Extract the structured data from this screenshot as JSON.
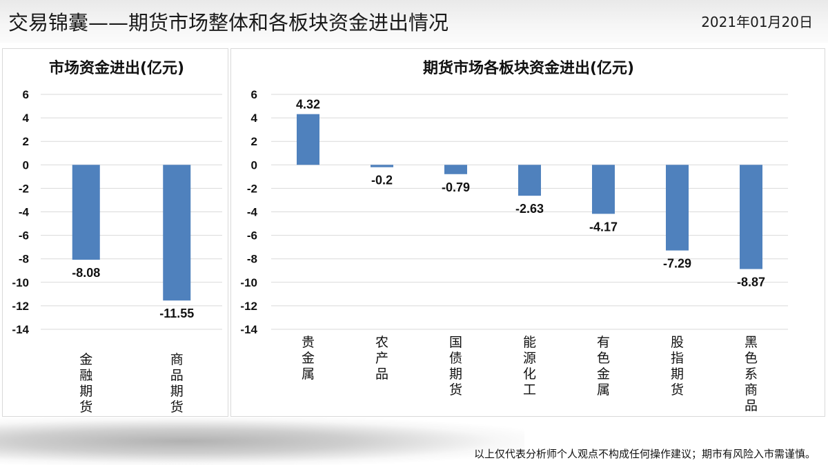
{
  "header": {
    "title": "交易锦囊——期货市场整体和各板块资金进出情况",
    "date": "2021年01月20日"
  },
  "footer": {
    "disclaimer": "以上仅代表分析师个人观点不构成任何操作建议；期市有风险入市需谨慎。"
  },
  "colors": {
    "bar": "#4f81bd",
    "grid": "#d9d9d9"
  },
  "chart_data": [
    {
      "type": "bar",
      "title": "市场资金进出(亿元)",
      "categories": [
        "金融期货",
        "商品期货"
      ],
      "values": [
        -8.08,
        -11.55
      ],
      "value_labels": [
        "-8.08",
        "-11.55"
      ],
      "yticks": [
        6,
        4,
        2,
        0,
        -2,
        -4,
        -6,
        -8,
        -10,
        -12,
        -14
      ],
      "ylim": [
        -14,
        6
      ],
      "grid": true,
      "legend": "none"
    },
    {
      "type": "bar",
      "title": "期货市场各板块资金进出(亿元)",
      "categories": [
        "贵金属",
        "农产品",
        "国债期货",
        "能源化工",
        "有色金属",
        "股指期货",
        "黑色系商品"
      ],
      "values": [
        4.32,
        -0.2,
        -0.79,
        -2.63,
        -4.17,
        -7.29,
        -8.87
      ],
      "value_labels": [
        "4.32",
        "-0.2",
        "-0.79",
        "-2.63",
        "-4.17",
        "-7.29",
        "-8.87"
      ],
      "yticks": [
        6,
        4,
        2,
        0,
        -2,
        -4,
        -6,
        -8,
        -10,
        -12,
        -14
      ],
      "ylim": [
        -14,
        6
      ],
      "grid": true,
      "legend": "none"
    }
  ]
}
